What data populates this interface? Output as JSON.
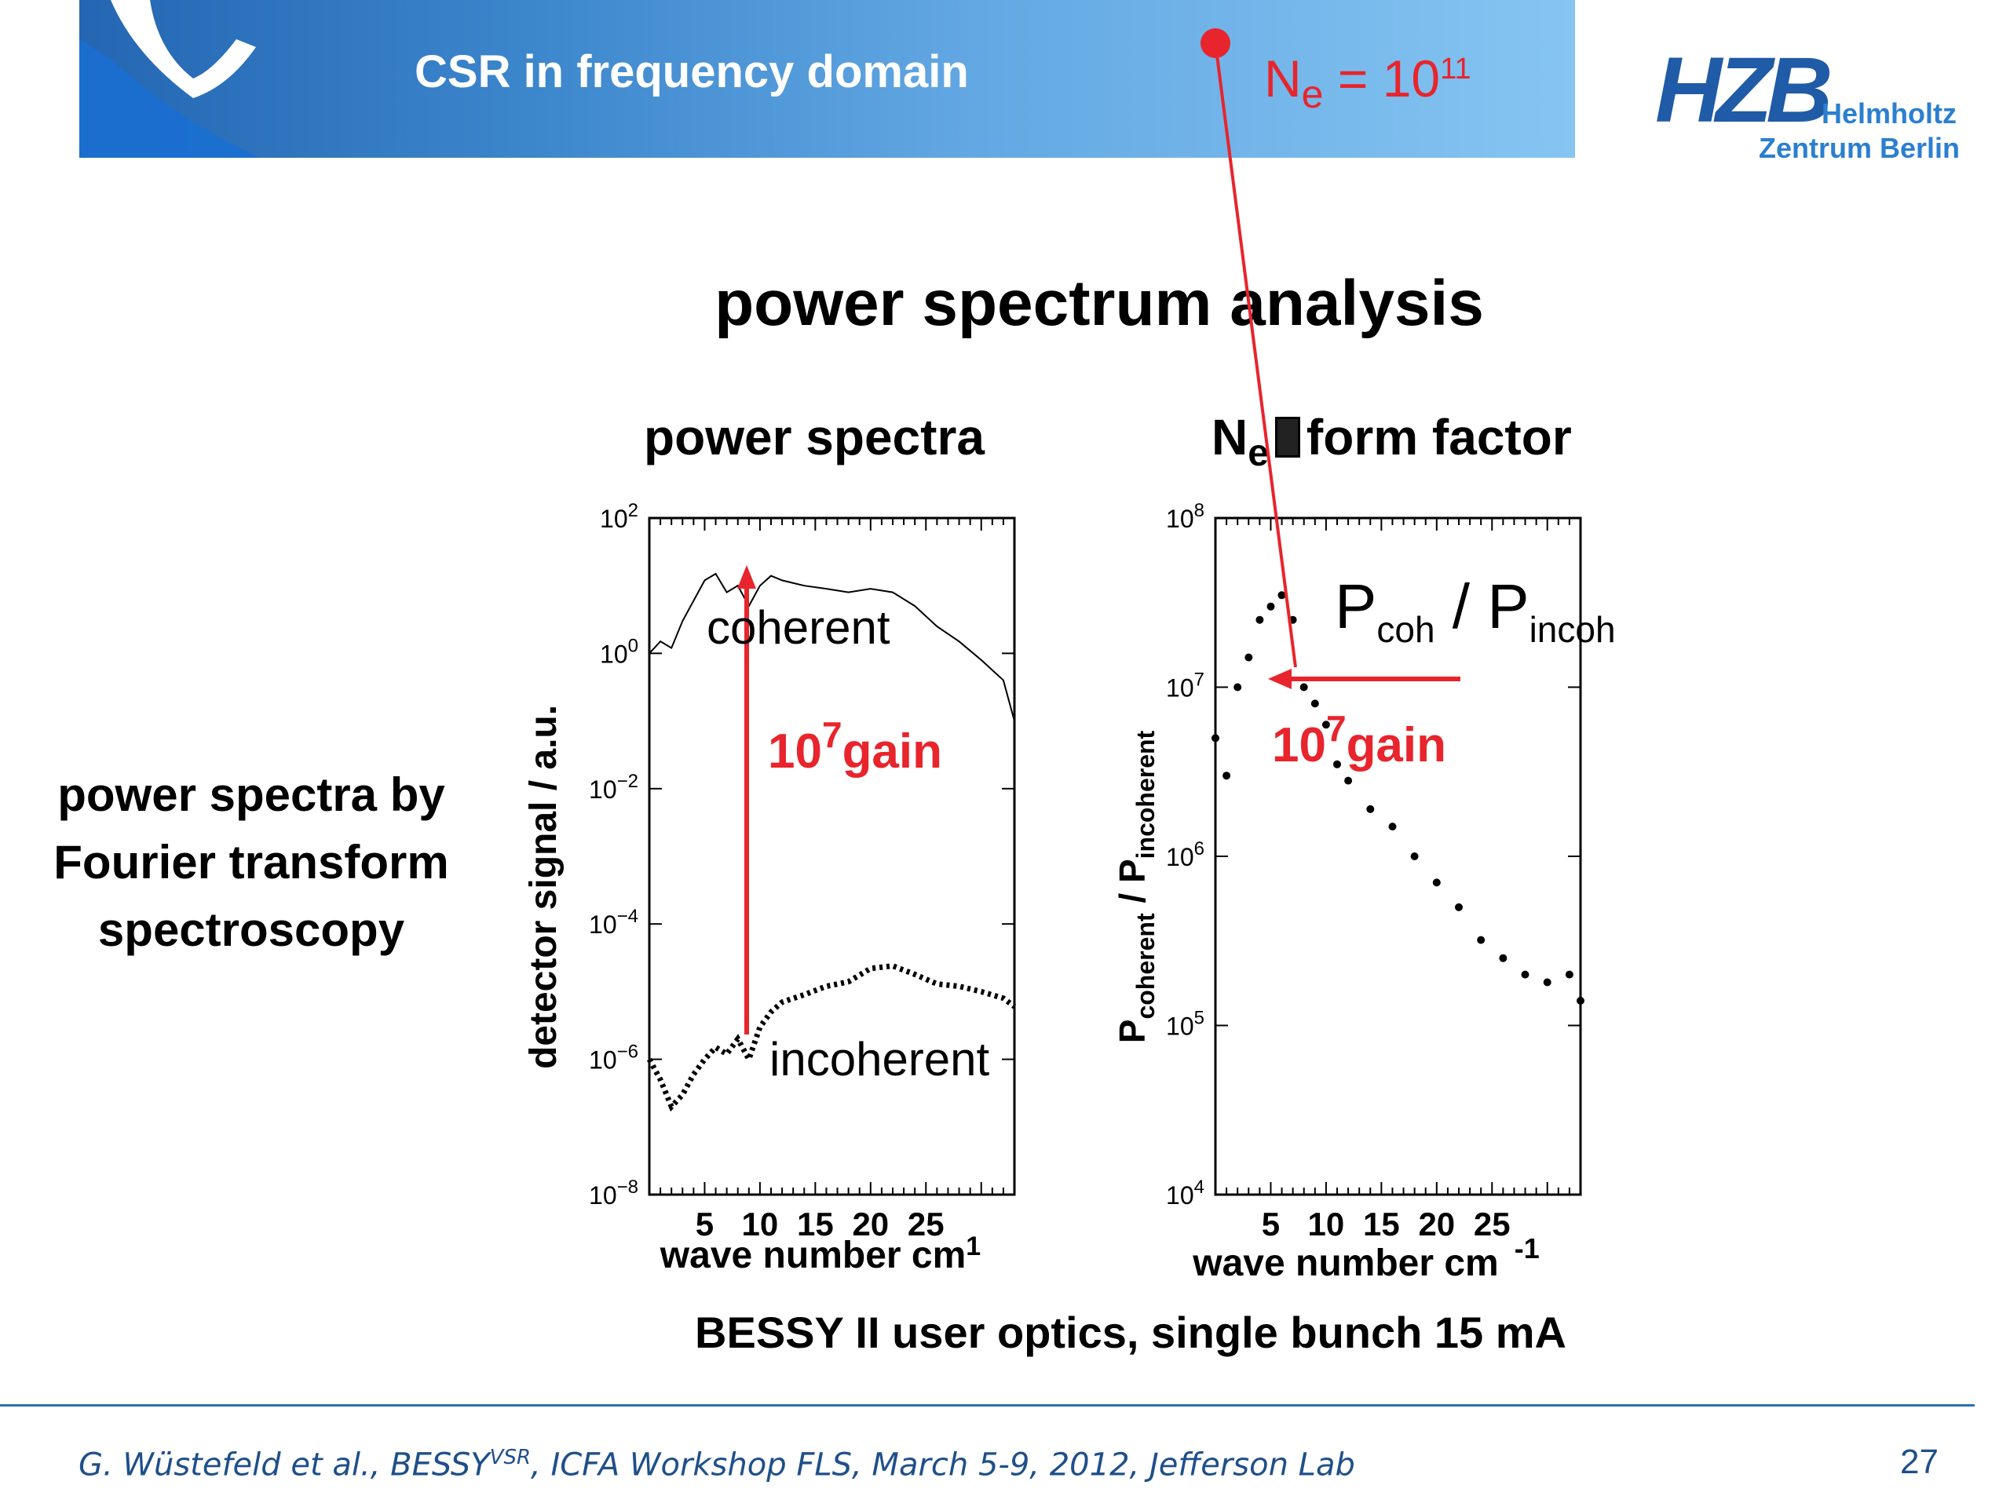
{
  "header": {
    "title": "CSR in frequency domain",
    "ne_label": "N",
    "ne_sub": "e",
    "ne_eq": "= 10",
    "ne_exp": "11"
  },
  "logo": {
    "mark": "HZB",
    "line1": "Helmholtz",
    "line2": "Zentrum Berlin"
  },
  "main_title": "power spectrum analysis",
  "side_text": [
    "power spectra by",
    "Fourier transform",
    "spectroscopy"
  ],
  "left_panel": {
    "title": "power spectra",
    "ylabel": "detector signal / a.u.",
    "xlabel": "wave number cm",
    "xlabel_sup": "1",
    "label_coherent": "coherent",
    "label_incoherent": "incoherent",
    "gain_base": "10",
    "gain_exp": "7",
    "gain_word": "gain",
    "yticks": [
      {
        "b": "10",
        "e": "2"
      },
      {
        "b": "10",
        "e": "0"
      },
      {
        "b": "10",
        "e": "−2"
      },
      {
        "b": "10",
        "e": "−4"
      },
      {
        "b": "10",
        "e": "−6"
      },
      {
        "b": "10",
        "e": "−8"
      }
    ],
    "xticks": [
      "5",
      "10",
      "15",
      "20",
      "25"
    ]
  },
  "right_panel": {
    "title_main": "N",
    "title_sub": "e",
    "title_rest": "form factor",
    "ylabel_a": "P",
    "ylabel_a_sub": "coherent",
    "ylabel_sep": " / ",
    "ylabel_b": "P",
    "ylabel_b_sub": "incoherent",
    "xlabel": "wave number cm",
    "xlabel_sup": "-1",
    "ratio_a": "P",
    "ratio_a_sub": "coh",
    "ratio_sep": " / ",
    "ratio_b": "P",
    "ratio_b_sub": "incoh",
    "gain_base": "10",
    "gain_exp": "7",
    "gain_word": "gain",
    "yticks": [
      {
        "b": "10",
        "e": "8"
      },
      {
        "b": "10",
        "e": "7"
      },
      {
        "b": "10",
        "e": "6"
      },
      {
        "b": "10",
        "e": "5"
      },
      {
        "b": "10",
        "e": "4"
      }
    ],
    "xticks": [
      "5",
      "10",
      "15",
      "20",
      "25"
    ]
  },
  "chart_data": [
    {
      "type": "line",
      "y_scale": "log",
      "ylim": [
        1e-08,
        100
      ],
      "xlim": [
        0,
        33
      ],
      "series": [
        {
          "name": "coherent",
          "x": [
            0,
            1,
            2,
            3,
            4,
            5,
            6,
            7,
            8,
            9,
            10,
            11,
            12,
            14,
            16,
            18,
            20,
            22,
            24,
            26,
            28,
            30,
            32,
            33
          ],
          "values": [
            1,
            1.5,
            1.2,
            3,
            6,
            12,
            15,
            8,
            10,
            5,
            10,
            14,
            12,
            10,
            9,
            8,
            9,
            8,
            5,
            2.5,
            1.5,
            0.8,
            0.4,
            0.1
          ]
        },
        {
          "name": "incoherent",
          "x": [
            0,
            1,
            2,
            3,
            4,
            5,
            6,
            7,
            8,
            9,
            10,
            11,
            12,
            14,
            16,
            18,
            20,
            22,
            24,
            26,
            28,
            30,
            32,
            33
          ],
          "values": [
            1e-06,
            5e-07,
            2e-07,
            3e-07,
            6e-07,
            1e-06,
            1.5e-06,
            1.2e-06,
            2e-06,
            1e-06,
            3e-06,
            5e-06,
            7e-06,
            9e-06,
            1.2e-05,
            1.4e-05,
            2.2e-05,
            2.4e-05,
            1.8e-05,
            1.3e-05,
            1.2e-05,
            1e-05,
            8e-06,
            6e-06
          ]
        }
      ]
    },
    {
      "type": "scatter",
      "y_scale": "log",
      "ylim": [
        10000,
        100000000
      ],
      "xlim": [
        0,
        33
      ],
      "series": [
        {
          "name": "P_coh / P_incoh",
          "x": [
            0,
            1,
            2,
            3,
            4,
            5,
            6,
            7,
            8,
            9,
            10,
            11,
            12,
            14,
            16,
            18,
            20,
            22,
            24,
            26,
            28,
            30,
            32,
            33
          ],
          "values": [
            5000000,
            3000000,
            10000000,
            15000000,
            25000000,
            30000000,
            35000000,
            25000000,
            10000000,
            8000000,
            6000000,
            3500000,
            2800000,
            1900000,
            1500000,
            1000000,
            700000,
            500000,
            320000,
            250000,
            200000,
            180000,
            200000,
            140000
          ]
        }
      ]
    }
  ],
  "caption": "BESSY II user optics, single bunch 15 mA",
  "footer": {
    "author": "G. Wüstefeld et al., BESSY",
    "sup": "VSR",
    "rest": ", ICFA Workshop FLS, March 5-9, 2012, Jefferson Lab",
    "page": "27"
  }
}
